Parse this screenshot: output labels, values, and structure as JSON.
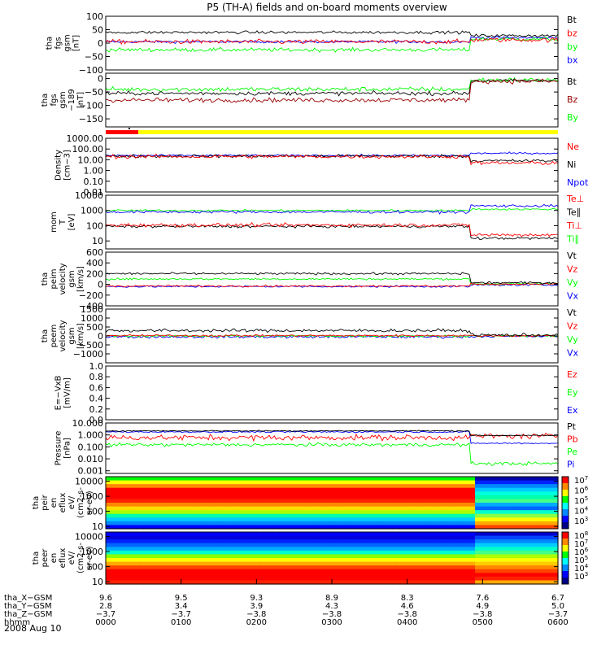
{
  "title": "P5 (TH-A) fields and on-board moments overview",
  "date_label": "2008 Aug 10",
  "colors": {
    "black": "#000000",
    "red": "#ff0000",
    "blue": "#0000ff",
    "green": "#00ff00",
    "darkred": "#990000",
    "yellow": "#ffff00"
  },
  "chart_data": [
    {
      "id": "fgs",
      "type": "line",
      "ylabel": [
        "tha",
        "fgs",
        "gsm",
        "[nT]"
      ],
      "ticks": [
        {
          "v": 100,
          "label": "100"
        },
        {
          "v": 50,
          "label": "50"
        },
        {
          "v": 0,
          "label": "0"
        },
        {
          "v": -50,
          "label": "−50"
        },
        {
          "v": -100,
          "label": "−100"
        }
      ],
      "ylim": [
        -100,
        100
      ],
      "scale": "linear",
      "legend": [
        {
          "label": "Bt",
          "color": "#000000"
        },
        {
          "label": "bz",
          "color": "#ff0000"
        },
        {
          "label": "by",
          "color": "#00ff00"
        },
        {
          "label": "bx",
          "color": "#0000ff"
        }
      ],
      "series": [
        {
          "name": "bx",
          "color": "#0000ff",
          "before": 5,
          "after": 20,
          "noise": 8
        },
        {
          "name": "by",
          "color": "#00ff00",
          "before": -25,
          "after": 15,
          "noise": 12
        },
        {
          "name": "bz",
          "color": "#ff0000",
          "before": 5,
          "after": 12,
          "noise": 14
        },
        {
          "name": "Bt",
          "color": "#000000",
          "before": 40,
          "after": 28,
          "noise": 9
        }
      ]
    },
    {
      "id": "fgsgse",
      "type": "line",
      "ylabel": [
        "tha",
        "fgs",
        "gsm",
        "−189",
        "[nT]"
      ],
      "ticks": [
        {
          "v": 0,
          "label": "0"
        },
        {
          "v": -50,
          "label": "−50"
        },
        {
          "v": -100,
          "label": "−100"
        },
        {
          "v": -150,
          "label": "−150"
        }
      ],
      "ylim": [
        -180,
        20
      ],
      "scale": "linear",
      "legend": [
        {
          "label": "Bt",
          "color": "#000000"
        },
        {
          "label": "Bz",
          "color": "#990000"
        },
        {
          "label": "By",
          "color": "#00ff00"
        }
      ],
      "series": [
        {
          "name": "By",
          "color": "#00ff00",
          "before": -40,
          "after": -5,
          "noise": 15
        },
        {
          "name": "Bt",
          "color": "#000000",
          "before": -55,
          "after": -8,
          "noise": 12
        },
        {
          "name": "Bz",
          "color": "#990000",
          "before": -80,
          "after": -10,
          "noise": 14
        }
      ]
    },
    {
      "id": "density",
      "type": "line",
      "ylabel": [
        "Density",
        "[cm−3]"
      ],
      "ticks": [
        {
          "v": 1000,
          "label": "1000.00"
        },
        {
          "v": 100,
          "label": "100.00"
        },
        {
          "v": 10,
          "label": "10.00"
        },
        {
          "v": 1,
          "label": "1.00"
        },
        {
          "v": 0.1,
          "label": "0.10"
        },
        {
          "v": 0.01,
          "label": "0.01"
        }
      ],
      "ylim": [
        0.01,
        1000
      ],
      "scale": "log",
      "legend": [
        {
          "label": "Ne",
          "color": "#ff0000"
        },
        {
          "label": "Ni",
          "color": "#000000"
        },
        {
          "label": "Npot",
          "color": "#0000ff"
        }
      ],
      "series": [
        {
          "name": "Npot",
          "color": "#0000ff",
          "before": 25,
          "after": 40,
          "noise": 0.15
        },
        {
          "name": "Ni",
          "color": "#000000",
          "before": 22,
          "after": 8,
          "noise": 0.25
        },
        {
          "name": "Ne",
          "color": "#ff0000",
          "before": 20,
          "after": 5,
          "noise": 0.3
        }
      ]
    },
    {
      "id": "temp",
      "type": "line",
      "ylabel": [
        "mom",
        "T",
        "[eV]"
      ],
      "ticks": [
        {
          "v": 10000,
          "label": "10000"
        },
        {
          "v": 1000,
          "label": "1000"
        },
        {
          "v": 100,
          "label": "100"
        },
        {
          "v": 10,
          "label": "10"
        }
      ],
      "ylim": [
        3,
        10000
      ],
      "scale": "log",
      "legend": [
        {
          "label": "Te⊥",
          "color": "#ff0000"
        },
        {
          "label": "Te∥",
          "color": "#000000"
        },
        {
          "label": "Ti⊥",
          "color": "#ff0000"
        },
        {
          "label": "Ti∥",
          "color": "#00ff00"
        }
      ],
      "series": [
        {
          "name": "Ti∥",
          "color": "#00ff00",
          "before": 1000,
          "after": 1200,
          "noise": 0.1
        },
        {
          "name": "Ti⊥",
          "color": "#0000ff",
          "before": 800,
          "after": 2000,
          "noise": 0.15
        },
        {
          "name": "Te∥",
          "color": "#000000",
          "before": 90,
          "after": 15,
          "noise": 0.15
        },
        {
          "name": "Te⊥",
          "color": "#ff0000",
          "before": 110,
          "after": 25,
          "noise": 0.2
        }
      ]
    },
    {
      "id": "peim",
      "type": "line",
      "ylabel": [
        "tha",
        "peim",
        "velocity",
        "gsm",
        "[km/s]"
      ],
      "ticks": [
        {
          "v": 600,
          "label": "600"
        },
        {
          "v": 400,
          "label": "400"
        },
        {
          "v": 200,
          "label": "200"
        },
        {
          "v": 0,
          "label": "0"
        },
        {
          "v": -200,
          "label": "−200"
        },
        {
          "v": -400,
          "label": "−400"
        }
      ],
      "ylim": [
        -400,
        600
      ],
      "scale": "linear",
      "legend": [
        {
          "label": "Vt",
          "color": "#000000"
        },
        {
          "label": "Vz",
          "color": "#ff0000"
        },
        {
          "label": "Vy",
          "color": "#00ff00"
        },
        {
          "label": "Vx",
          "color": "#0000ff"
        }
      ],
      "series": [
        {
          "name": "Vx",
          "color": "#0000ff",
          "before": -40,
          "after": -10,
          "noise": 30
        },
        {
          "name": "Vy",
          "color": "#00ff00",
          "before": 100,
          "after": 10,
          "noise": 30
        },
        {
          "name": "Vz",
          "color": "#ff0000",
          "before": -30,
          "after": 5,
          "noise": 30
        },
        {
          "name": "Vt",
          "color": "#000000",
          "before": 200,
          "after": 30,
          "noise": 35
        }
      ]
    },
    {
      "id": "peem",
      "type": "line",
      "ylabel": [
        "tha",
        "peem",
        "velocity",
        "gsm",
        "[km/s]"
      ],
      "ticks": [
        {
          "v": 1500,
          "label": "1500"
        },
        {
          "v": 1000,
          "label": "1000"
        },
        {
          "v": 500,
          "label": "500"
        },
        {
          "v": 0,
          "label": "0"
        },
        {
          "v": -500,
          "label": "−500"
        },
        {
          "v": -1000,
          "label": "−1000"
        }
      ],
      "ylim": [
        -1500,
        1500
      ],
      "scale": "linear",
      "legend": [
        {
          "label": "Vt",
          "color": "#000000"
        },
        {
          "label": "Vz",
          "color": "#ff0000"
        },
        {
          "label": "Vy",
          "color": "#00ff00"
        },
        {
          "label": "Vx",
          "color": "#0000ff"
        }
      ],
      "series": [
        {
          "name": "Vx",
          "color": "#0000ff",
          "before": -50,
          "after": -20,
          "noise": 120
        },
        {
          "name": "Vy",
          "color": "#00ff00",
          "before": 0,
          "after": 0,
          "noise": 90
        },
        {
          "name": "Vz",
          "color": "#ff0000",
          "before": 20,
          "after": 10,
          "noise": 90
        },
        {
          "name": "Vt",
          "color": "#000000",
          "before": 300,
          "after": 50,
          "noise": 150
        }
      ]
    },
    {
      "id": "efield",
      "type": "line",
      "ylabel": [
        "E=−VxB",
        "[mV/m]"
      ],
      "ticks": [
        {
          "v": 1.0,
          "label": "1.0"
        },
        {
          "v": 0.8,
          "label": "0.8"
        },
        {
          "v": 0.6,
          "label": "0.6"
        },
        {
          "v": 0.4,
          "label": "0.4"
        },
        {
          "v": 0.2,
          "label": "0.2"
        },
        {
          "v": 0.0,
          "label": "0.0"
        }
      ],
      "ylim": [
        0,
        1
      ],
      "scale": "linear",
      "legend": [
        {
          "label": "Ez",
          "color": "#ff0000"
        },
        {
          "label": "Ey",
          "color": "#00ff00"
        },
        {
          "label": "Ex",
          "color": "#0000ff"
        }
      ],
      "series": []
    },
    {
      "id": "pressure",
      "type": "line",
      "ylabel": [
        "Pressure",
        "[nPa]"
      ],
      "ticks": [
        {
          "v": 10,
          "label": "10.000"
        },
        {
          "v": 1,
          "label": "1.000"
        },
        {
          "v": 0.1,
          "label": "0.100"
        },
        {
          "v": 0.01,
          "label": "0.010"
        },
        {
          "v": 0.001,
          "label": "0.001"
        }
      ],
      "ylim": [
        0.0006,
        10
      ],
      "scale": "log",
      "legend": [
        {
          "label": "Pt",
          "color": "#000000"
        },
        {
          "label": "Pb",
          "color": "#ff0000"
        },
        {
          "label": "Pe",
          "color": "#00ff00"
        },
        {
          "label": "Pi",
          "color": "#0000ff"
        }
      ],
      "series": [
        {
          "name": "Pe",
          "color": "#00ff00",
          "before": 0.15,
          "after": 0.004,
          "noise": 0.25
        },
        {
          "name": "Pi",
          "color": "#0000ff",
          "before": 1.8,
          "after": 0.2,
          "noise": 0.1
        },
        {
          "name": "Pb",
          "color": "#ff0000",
          "before": 0.6,
          "after": 0.8,
          "noise": 0.4
        },
        {
          "name": "Pt",
          "color": "#000000",
          "before": 2.2,
          "after": 0.9,
          "noise": 0.08
        }
      ]
    },
    {
      "id": "peir",
      "type": "heatmap",
      "ylabel": [
        "tha",
        "peir",
        "en",
        "eflux",
        "eV/",
        "(cm2-s-",
        "sr-eV)"
      ],
      "ticks": [
        {
          "v": 10000,
          "label": "10000"
        },
        {
          "v": 1000,
          "label": "1000"
        },
        {
          "v": 100,
          "label": "100"
        },
        {
          "v": 10,
          "label": "10"
        }
      ],
      "ylim": [
        7,
        20000
      ],
      "scale": "log",
      "colorbar": [
        "10^7",
        "10^6",
        "10^5",
        "10^4",
        "10^3"
      ]
    },
    {
      "id": "peer",
      "type": "heatmap",
      "ylabel": [
        "tha",
        "peer",
        "en",
        "eflux",
        "eV/",
        "(cm2-s-",
        "sr-eV)"
      ],
      "ticks": [
        {
          "v": 10000,
          "label": "10000"
        },
        {
          "v": 1000,
          "label": "1000"
        },
        {
          "v": 100,
          "label": "100"
        },
        {
          "v": 10,
          "label": "10"
        }
      ],
      "ylim": [
        7,
        20000
      ],
      "scale": "log",
      "colorbar": [
        "10^8",
        "10^7",
        "10^6",
        "10^5",
        "10^4",
        "10^3"
      ]
    }
  ],
  "xaxis": {
    "rows": [
      {
        "label": "tha_X−GSM",
        "values": [
          "9.6",
          "9.5",
          "9.3",
          "8.9",
          "8.3",
          "7.6",
          "6.7"
        ]
      },
      {
        "label": "tha_Y−GSM",
        "values": [
          "2.8",
          "3.4",
          "3.9",
          "4.3",
          "4.6",
          "4.9",
          "5.0"
        ]
      },
      {
        "label": "tha_Z−GSM",
        "values": [
          "−3.7",
          "−3.7",
          "−3.8",
          "−3.8",
          "−3.8",
          "−3.8",
          "−3.7"
        ]
      },
      {
        "label": "hhmm",
        "values": [
          "0000",
          "0100",
          "0200",
          "0300",
          "0400",
          "0500",
          "0600"
        ]
      }
    ]
  }
}
